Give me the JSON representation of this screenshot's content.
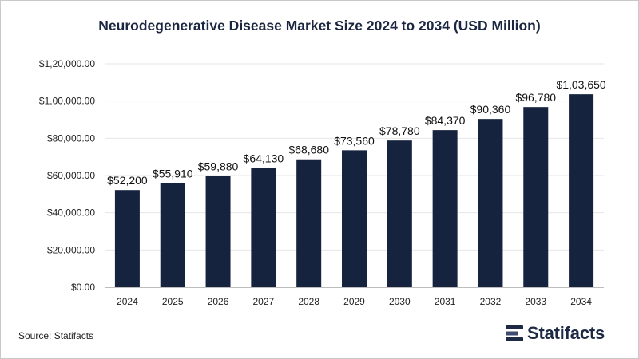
{
  "colors": {
    "bar": "#15233e",
    "grid": "#e6e6e6",
    "axis": "#222222",
    "title": "#1b2741"
  },
  "source_text": "Source: Statifacts",
  "brand_name": "Statifacts",
  "chart_data": {
    "type": "bar",
    "title": "Neurodegenerative Disease Market Size 2024 to 2034 (USD Million)",
    "xlabel": "",
    "ylabel": "",
    "categories": [
      "2024",
      "2025",
      "2026",
      "2027",
      "2028",
      "2029",
      "2030",
      "2031",
      "2032",
      "2033",
      "2034"
    ],
    "values": [
      52200,
      55910,
      59880,
      64130,
      68680,
      73560,
      78780,
      84370,
      90360,
      96780,
      103650
    ],
    "value_labels": [
      "$52,200",
      "$55,910",
      "$59,880",
      "$64,130",
      "$68,680",
      "$73,560",
      "$78,780",
      "$84,370",
      "$90,360",
      "$96,780",
      "$1,03,650"
    ],
    "ylim": [
      0,
      120000
    ],
    "yticks": [
      0,
      20000,
      40000,
      60000,
      80000,
      100000,
      120000
    ],
    "ytick_labels": [
      "$0.00",
      "$20,000.00",
      "$40,000.00",
      "$60,000.00",
      "$80,000.00",
      "$1,00,000.00",
      "$1,20,000.00"
    ],
    "grid": true,
    "legend": "none"
  }
}
